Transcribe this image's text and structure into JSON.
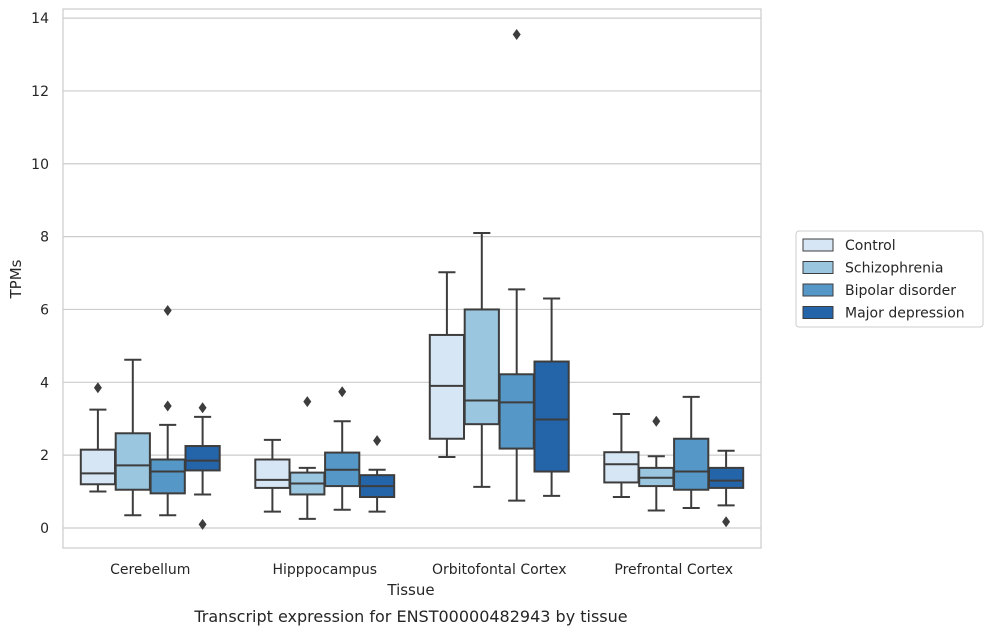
{
  "chart_data": {
    "type": "box",
    "caption": "Transcript expression for ENST00000482943 by tissue",
    "xlabel": "Tissue",
    "ylabel": "TPMs",
    "ylim": [
      -0.55,
      14.25
    ],
    "yticks": [
      0,
      2,
      4,
      6,
      8,
      10,
      12,
      14
    ],
    "grid": true,
    "legend_position": "right",
    "categories": [
      "Cerebellum",
      "Hipppocampus",
      "Orbitofontal Cortex",
      "Prefrontal Cortex"
    ],
    "series": [
      {
        "name": "Control",
        "color": "#d6e6f4",
        "boxes": [
          {
            "whisker_low": 1.0,
            "q1": 1.2,
            "median": 1.5,
            "q3": 2.15,
            "whisker_high": 3.25,
            "outliers": [
              3.85
            ]
          },
          {
            "whisker_low": 0.45,
            "q1": 1.1,
            "median": 1.32,
            "q3": 1.88,
            "whisker_high": 2.42,
            "outliers": []
          },
          {
            "whisker_low": 1.95,
            "q1": 2.45,
            "median": 3.9,
            "q3": 5.3,
            "whisker_high": 7.02,
            "outliers": []
          },
          {
            "whisker_low": 0.85,
            "q1": 1.25,
            "median": 1.75,
            "q3": 2.08,
            "whisker_high": 3.13,
            "outliers": []
          }
        ]
      },
      {
        "name": "Schizophrenia",
        "color": "#9ac6df",
        "boxes": [
          {
            "whisker_low": 0.35,
            "q1": 1.05,
            "median": 1.72,
            "q3": 2.6,
            "whisker_high": 4.62,
            "outliers": []
          },
          {
            "whisker_low": 0.25,
            "q1": 0.92,
            "median": 1.22,
            "q3": 1.52,
            "whisker_high": 1.65,
            "outliers": [
              3.47
            ]
          },
          {
            "whisker_low": 1.13,
            "q1": 2.85,
            "median": 3.5,
            "q3": 6.0,
            "whisker_high": 8.1,
            "outliers": []
          },
          {
            "whisker_low": 0.48,
            "q1": 1.15,
            "median": 1.38,
            "q3": 1.65,
            "whisker_high": 1.97,
            "outliers": [
              2.93
            ]
          }
        ]
      },
      {
        "name": "Bipolar disorder",
        "color": "#5597c6",
        "boxes": [
          {
            "whisker_low": 0.35,
            "q1": 0.95,
            "median": 1.55,
            "q3": 1.88,
            "whisker_high": 2.83,
            "outliers": [
              5.97,
              3.35
            ]
          },
          {
            "whisker_low": 0.5,
            "q1": 1.15,
            "median": 1.6,
            "q3": 2.07,
            "whisker_high": 2.93,
            "outliers": [
              3.74
            ]
          },
          {
            "whisker_low": 0.75,
            "q1": 2.18,
            "median": 3.45,
            "q3": 4.22,
            "whisker_high": 6.55,
            "outliers": [
              13.55
            ]
          },
          {
            "whisker_low": 0.55,
            "q1": 1.05,
            "median": 1.55,
            "q3": 2.45,
            "whisker_high": 3.6,
            "outliers": []
          }
        ]
      },
      {
        "name": "Major depression",
        "color": "#2464a9",
        "boxes": [
          {
            "whisker_low": 0.92,
            "q1": 1.58,
            "median": 1.85,
            "q3": 2.25,
            "whisker_high": 3.05,
            "outliers": [
              3.3,
              0.1
            ]
          },
          {
            "whisker_low": 0.45,
            "q1": 0.85,
            "median": 1.15,
            "q3": 1.45,
            "whisker_high": 1.6,
            "outliers": [
              2.4
            ]
          },
          {
            "whisker_low": 0.88,
            "q1": 1.55,
            "median": 2.98,
            "q3": 4.57,
            "whisker_high": 6.3,
            "outliers": []
          },
          {
            "whisker_low": 0.62,
            "q1": 1.1,
            "median": 1.3,
            "q3": 1.65,
            "whisker_high": 2.12,
            "outliers": [
              0.17
            ]
          }
        ]
      }
    ]
  }
}
